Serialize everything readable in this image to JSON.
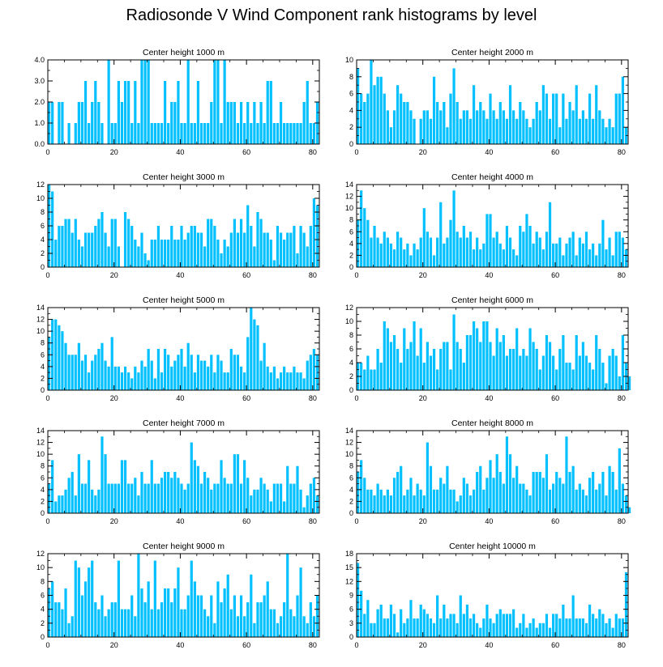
{
  "title": "Radiosonde V Wind Component rank histograms by level",
  "bar_color": "#00c0ff",
  "chart_data": [
    {
      "type": "bar",
      "title": "Center height 1000 m",
      "xlim": [
        0,
        82
      ],
      "ylim": [
        0,
        4
      ],
      "xticks": [
        0,
        20,
        40,
        60,
        80
      ],
      "yticks": [
        0,
        1,
        2,
        3,
        4
      ],
      "ytick_labels": [
        "0.0",
        "1.0",
        "2.0",
        "3.0",
        "4.0"
      ],
      "values": [
        2,
        2,
        0,
        2,
        2,
        0,
        1,
        0,
        1,
        2,
        2,
        3,
        1,
        2,
        3,
        2,
        1,
        0,
        4,
        1,
        1,
        3,
        2,
        3,
        3,
        1,
        3,
        1,
        4,
        4,
        4,
        1,
        1,
        1,
        1,
        3,
        1,
        2,
        2,
        3,
        1,
        1,
        4,
        1,
        1,
        3,
        1,
        1,
        1,
        2,
        4,
        4,
        1,
        4,
        2,
        2,
        2,
        1,
        2,
        1,
        2,
        1,
        2,
        1,
        2,
        1,
        3,
        3,
        1,
        1,
        2,
        1,
        1,
        1,
        1,
        1,
        1,
        2,
        3,
        1,
        1,
        2
      ]
    },
    {
      "type": "bar",
      "title": "Center height 2000 m",
      "xlim": [
        0,
        82
      ],
      "ylim": [
        0,
        10
      ],
      "xticks": [
        0,
        20,
        40,
        60,
        80
      ],
      "yticks": [
        0,
        2,
        4,
        6,
        8,
        10
      ],
      "ytick_labels": [
        "0",
        "2",
        "4",
        "6",
        "8",
        "10"
      ],
      "values": [
        9,
        6,
        5,
        6,
        10,
        7,
        8,
        8,
        6,
        4,
        2,
        4,
        7,
        6,
        5,
        5,
        4,
        3,
        0,
        3,
        4,
        4,
        3,
        8,
        5,
        4,
        5,
        2,
        6,
        9,
        5,
        3,
        4,
        4,
        3,
        7,
        4,
        5,
        4,
        3,
        6,
        4,
        3,
        5,
        4,
        3,
        7,
        4,
        3,
        5,
        4,
        3,
        2,
        3,
        5,
        4,
        7,
        6,
        3,
        6,
        6,
        2,
        6,
        3,
        5,
        4,
        7,
        3,
        4,
        3,
        6,
        3,
        7,
        4,
        3,
        2,
        3,
        2,
        6,
        6,
        8,
        2
      ]
    },
    {
      "type": "bar",
      "title": "Center height 3000 m",
      "xlim": [
        0,
        82
      ],
      "ylim": [
        0,
        12
      ],
      "xticks": [
        0,
        20,
        40,
        60,
        80
      ],
      "yticks": [
        0,
        2,
        4,
        6,
        8,
        10,
        12
      ],
      "ytick_labels": [
        "0",
        "2",
        "4",
        "6",
        "8",
        "10",
        "12"
      ],
      "values": [
        12,
        11,
        4,
        6,
        6,
        7,
        7,
        5,
        7,
        4,
        3,
        5,
        5,
        5,
        6,
        7,
        8,
        5,
        3,
        7,
        7,
        3,
        0,
        8,
        7,
        6,
        4,
        3,
        5,
        2,
        1,
        4,
        4,
        6,
        4,
        4,
        4,
        6,
        4,
        4,
        6,
        4,
        5,
        6,
        6,
        5,
        5,
        3,
        7,
        7,
        6,
        4,
        2,
        4,
        3,
        5,
        7,
        5,
        7,
        5,
        9,
        6,
        3,
        8,
        7,
        5,
        5,
        4,
        1,
        6,
        5,
        4,
        5,
        5,
        6,
        2,
        6,
        5,
        3,
        6,
        10,
        9
      ]
    },
    {
      "type": "bar",
      "title": "Center height 4000 m",
      "xlim": [
        0,
        82
      ],
      "ylim": [
        0,
        14
      ],
      "xticks": [
        0,
        20,
        40,
        60,
        80
      ],
      "yticks": [
        0,
        2,
        4,
        6,
        8,
        10,
        12,
        14
      ],
      "ytick_labels": [
        "0",
        "2",
        "4",
        "6",
        "8",
        "10",
        "12",
        "14"
      ],
      "values": [
        8,
        13,
        10,
        8,
        5,
        7,
        5,
        4,
        6,
        5,
        4,
        3,
        6,
        5,
        3,
        4,
        2,
        4,
        3,
        5,
        10,
        6,
        5,
        2,
        5,
        11,
        4,
        5,
        8,
        13,
        6,
        5,
        7,
        5,
        6,
        3,
        5,
        3,
        4,
        9,
        9,
        5,
        6,
        4,
        3,
        7,
        5,
        3,
        2,
        7,
        6,
        9,
        7,
        4,
        6,
        5,
        3,
        6,
        11,
        4,
        4,
        5,
        2,
        4,
        5,
        6,
        2,
        5,
        4,
        6,
        3,
        4,
        2,
        4,
        8,
        3,
        5,
        2,
        6,
        6,
        5,
        3
      ]
    },
    {
      "type": "bar",
      "title": "Center height 5000 m",
      "xlim": [
        0,
        82
      ],
      "ylim": [
        0,
        14
      ],
      "xticks": [
        0,
        20,
        40,
        60,
        80
      ],
      "yticks": [
        0,
        2,
        4,
        6,
        8,
        10,
        12,
        14
      ],
      "ytick_labels": [
        "0",
        "2",
        "4",
        "6",
        "8",
        "10",
        "12",
        "14"
      ],
      "values": [
        9,
        12,
        12,
        11,
        10,
        8,
        6,
        6,
        6,
        8,
        5,
        6,
        3,
        5,
        6,
        7,
        8,
        5,
        4,
        9,
        4,
        4,
        3,
        4,
        3,
        2,
        4,
        3,
        5,
        4,
        7,
        5,
        2,
        7,
        3,
        7,
        6,
        4,
        5,
        6,
        7,
        4,
        8,
        6,
        3,
        6,
        5,
        5,
        4,
        6,
        3,
        6,
        5,
        3,
        3,
        7,
        6,
        6,
        4,
        3,
        9,
        14,
        12,
        11,
        5,
        8,
        4,
        3,
        4,
        2,
        3,
        4,
        3,
        3,
        4,
        3,
        3,
        2,
        5,
        6,
        7,
        6
      ]
    },
    {
      "type": "bar",
      "title": "Center height 6000 m",
      "xlim": [
        0,
        82
      ],
      "ylim": [
        0,
        12
      ],
      "xticks": [
        0,
        20,
        40,
        60,
        80
      ],
      "yticks": [
        0,
        2,
        4,
        6,
        8,
        10,
        12
      ],
      "ytick_labels": [
        "0",
        "2",
        "4",
        "6",
        "8",
        "10",
        "12"
      ],
      "values": [
        4,
        4,
        3,
        5,
        3,
        3,
        6,
        4,
        10,
        9,
        7,
        8,
        6,
        4,
        9,
        6,
        7,
        10,
        5,
        9,
        4,
        7,
        5,
        6,
        3,
        6,
        7,
        7,
        3,
        11,
        7,
        6,
        4,
        8,
        8,
        10,
        9,
        7,
        10,
        10,
        7,
        5,
        9,
        7,
        8,
        5,
        6,
        6,
        9,
        5,
        6,
        5,
        9,
        7,
        6,
        3,
        5,
        8,
        7,
        5,
        3,
        6,
        8,
        4,
        4,
        3,
        8,
        5,
        7,
        5,
        4,
        3,
        8,
        6,
        4,
        1,
        5,
        6,
        5,
        2,
        8,
        4,
        2
      ]
    },
    {
      "type": "bar",
      "title": "Center height 7000 m",
      "xlim": [
        0,
        82
      ],
      "ylim": [
        0,
        14
      ],
      "xticks": [
        0,
        20,
        40,
        60,
        80
      ],
      "yticks": [
        0,
        2,
        4,
        6,
        8,
        10,
        12,
        14
      ],
      "ytick_labels": [
        "0",
        "2",
        "4",
        "6",
        "8",
        "10",
        "12",
        "14"
      ],
      "values": [
        5,
        9,
        2,
        3,
        3,
        4,
        6,
        7,
        3,
        10,
        5,
        5,
        9,
        4,
        3,
        4,
        13,
        10,
        5,
        5,
        5,
        5,
        9,
        9,
        5,
        5,
        6,
        3,
        7,
        5,
        5,
        9,
        5,
        5,
        6,
        7,
        7,
        6,
        7,
        6,
        5,
        4,
        5,
        12,
        9,
        8,
        5,
        7,
        6,
        4,
        5,
        5,
        9,
        6,
        5,
        5,
        10,
        10,
        5,
        9,
        6,
        3,
        4,
        4,
        6,
        5,
        4,
        2,
        5,
        5,
        5,
        2,
        8,
        5,
        5,
        8,
        4,
        1,
        3,
        5,
        6,
        3
      ]
    },
    {
      "type": "bar",
      "title": "Center height 8000 m",
      "xlim": [
        0,
        82
      ],
      "ylim": [
        0,
        14
      ],
      "xticks": [
        0,
        20,
        40,
        60,
        80
      ],
      "yticks": [
        0,
        2,
        4,
        6,
        8,
        10,
        12,
        14
      ],
      "ytick_labels": [
        "0",
        "2",
        "4",
        "6",
        "8",
        "10",
        "12",
        "14"
      ],
      "values": [
        7,
        9,
        6,
        4,
        4,
        3,
        5,
        4,
        3,
        4,
        3,
        6,
        7,
        8,
        3,
        4,
        6,
        3,
        5,
        4,
        3,
        12,
        8,
        4,
        4,
        6,
        5,
        8,
        4,
        4,
        2,
        3,
        6,
        5,
        3,
        4,
        7,
        8,
        4,
        6,
        9,
        6,
        10,
        7,
        5,
        13,
        10,
        6,
        8,
        5,
        5,
        4,
        3,
        7,
        7,
        7,
        6,
        10,
        4,
        5,
        7,
        6,
        5,
        13,
        7,
        8,
        4,
        5,
        4,
        3,
        6,
        7,
        4,
        5,
        7,
        3,
        8,
        7,
        4,
        11,
        5,
        3,
        1
      ]
    },
    {
      "type": "bar",
      "title": "Center height 9000 m",
      "xlim": [
        0,
        82
      ],
      "ylim": [
        0,
        12
      ],
      "xticks": [
        0,
        20,
        40,
        60,
        80
      ],
      "yticks": [
        0,
        2,
        4,
        6,
        8,
        10,
        12
      ],
      "ytick_labels": [
        "0",
        "2",
        "4",
        "6",
        "8",
        "10",
        "12"
      ],
      "values": [
        7,
        8,
        5,
        5,
        4,
        7,
        2,
        3,
        11,
        10,
        6,
        8,
        10,
        11,
        5,
        4,
        6,
        3,
        4,
        5,
        5,
        11,
        4,
        4,
        4,
        6,
        3,
        12,
        7,
        5,
        8,
        4,
        11,
        4,
        5,
        7,
        7,
        5,
        7,
        10,
        4,
        4,
        6,
        11,
        8,
        6,
        6,
        4,
        3,
        6,
        2,
        8,
        5,
        7,
        9,
        4,
        6,
        3,
        6,
        3,
        5,
        9,
        2,
        5,
        5,
        6,
        8,
        4,
        4,
        2,
        3,
        5,
        12,
        4,
        3,
        6,
        10,
        3,
        2,
        5,
        3,
        6
      ]
    },
    {
      "type": "bar",
      "title": "Center height 10000 m",
      "xlim": [
        0,
        82
      ],
      "ylim": [
        0,
        18
      ],
      "xticks": [
        0,
        20,
        40,
        60,
        80
      ],
      "yticks": [
        0,
        3,
        6,
        9,
        12,
        15,
        18
      ],
      "ytick_labels": [
        "0",
        "3",
        "6",
        "9",
        "12",
        "15",
        "18"
      ],
      "values": [
        16,
        10,
        5,
        8,
        3,
        3,
        6,
        7,
        4,
        4,
        7,
        5,
        1,
        6,
        3,
        4,
        8,
        4,
        4,
        7,
        6,
        5,
        4,
        3,
        9,
        4,
        7,
        4,
        5,
        5,
        3,
        9,
        5,
        7,
        4,
        5,
        3,
        2,
        4,
        7,
        4,
        3,
        5,
        6,
        5,
        5,
        5,
        6,
        2,
        3,
        5,
        2,
        3,
        4,
        2,
        3,
        3,
        5,
        2,
        5,
        5,
        4,
        7,
        4,
        4,
        9,
        4,
        4,
        4,
        3,
        7,
        5,
        4,
        6,
        5,
        3,
        4,
        2,
        5,
        4,
        4,
        14
      ]
    }
  ]
}
